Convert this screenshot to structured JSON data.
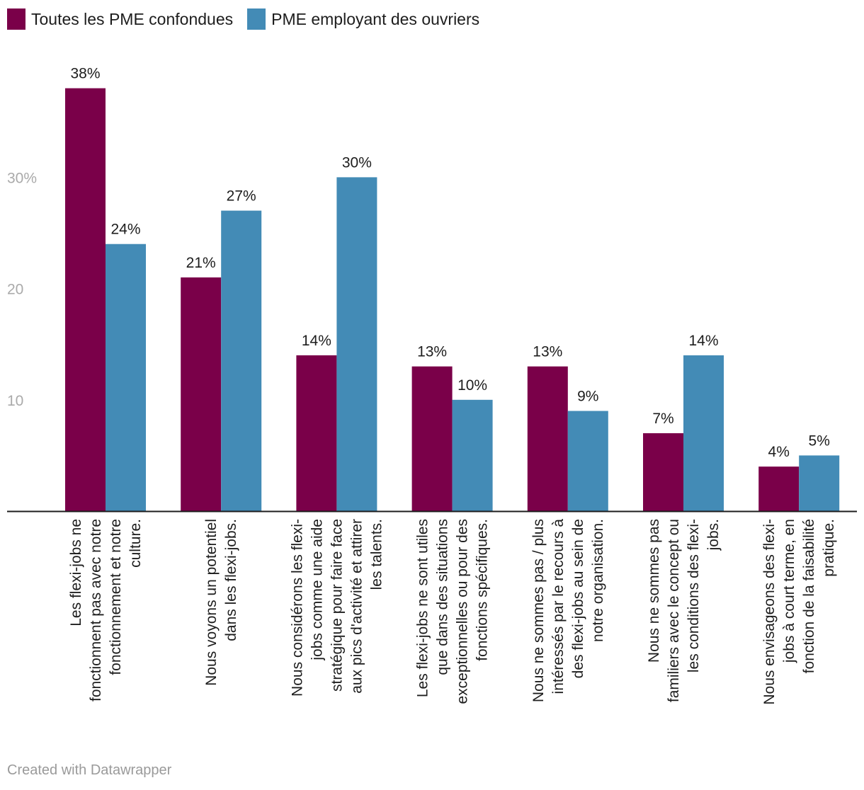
{
  "colors": {
    "series1": "#7a0049",
    "series2": "#438bb6",
    "axis": "#1d1d1d",
    "tick": "#aaaaaa",
    "footer": "#9a9a9a"
  },
  "chart_data": {
    "type": "bar",
    "title": "",
    "xlabel": "",
    "ylabel": "",
    "ylim": [
      0,
      40
    ],
    "yticks": [
      10,
      20,
      30
    ],
    "ytick_labels": [
      "10",
      "20",
      "30%"
    ],
    "grid": false,
    "legend": "top-left",
    "categories": [
      [
        "Les flexi-jobs ne",
        "fonctionnent pas avec notre",
        "fonctionnement et notre",
        "culture."
      ],
      [
        "Nous voyons un potentiel",
        "dans les flexi-jobs."
      ],
      [
        "Nous considérons les flexi-",
        "jobs comme une aide",
        "stratégique pour faire face",
        "aux pics d'activité et attirer",
        "les talents."
      ],
      [
        "Les flexi-jobs ne sont utiles",
        "que dans des situations",
        "exceptionnelles ou pour des",
        "fonctions spécifiques."
      ],
      [
        "Nous ne sommes pas / plus",
        "intéressés par le recours à",
        "des flexi-jobs au sein de",
        "notre organisation."
      ],
      [
        "Nous ne sommes pas",
        "familiers avec le concept ou",
        "les conditions des flexi-",
        "jobs."
      ],
      [
        "Nous envisageons des flexi-",
        "jobs à court terme, en",
        "fonction de la faisabilité",
        "pratique."
      ]
    ],
    "series": [
      {
        "name": "Toutes les PME confondues",
        "values": [
          38,
          21,
          14,
          13,
          13,
          7,
          4
        ],
        "labels": [
          "38%",
          "21%",
          "14%",
          "13%",
          "13%",
          "7%",
          "4%"
        ]
      },
      {
        "name": "PME employant des ouvriers",
        "values": [
          24,
          27,
          30,
          10,
          9,
          14,
          5
        ],
        "labels": [
          "24%",
          "27%",
          "30%",
          "10%",
          "9%",
          "14%",
          "5%"
        ]
      }
    ]
  },
  "footer": "Created with Datawrapper"
}
